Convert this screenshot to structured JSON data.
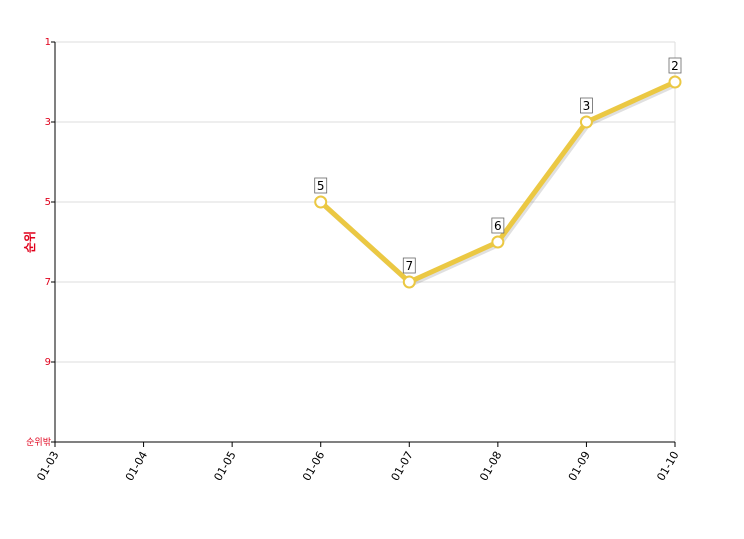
{
  "chart_data": {
    "type": "line",
    "y_label": "순위",
    "categories": [
      "01-03",
      "01-04",
      "01-05",
      "01-06",
      "01-07",
      "01-08",
      "01-09",
      "01-10"
    ],
    "series": [
      {
        "color": "#ebc843",
        "values": [
          null,
          null,
          null,
          5,
          7,
          6,
          3,
          2
        ]
      }
    ],
    "ylim": [
      1,
      11
    ],
    "y_inverted": true,
    "yticks": [
      1,
      3,
      5,
      7,
      9,
      {
        "value": 11,
        "label": "순위밖"
      }
    ],
    "grid": true,
    "tick_label_color": "#e0001b"
  }
}
